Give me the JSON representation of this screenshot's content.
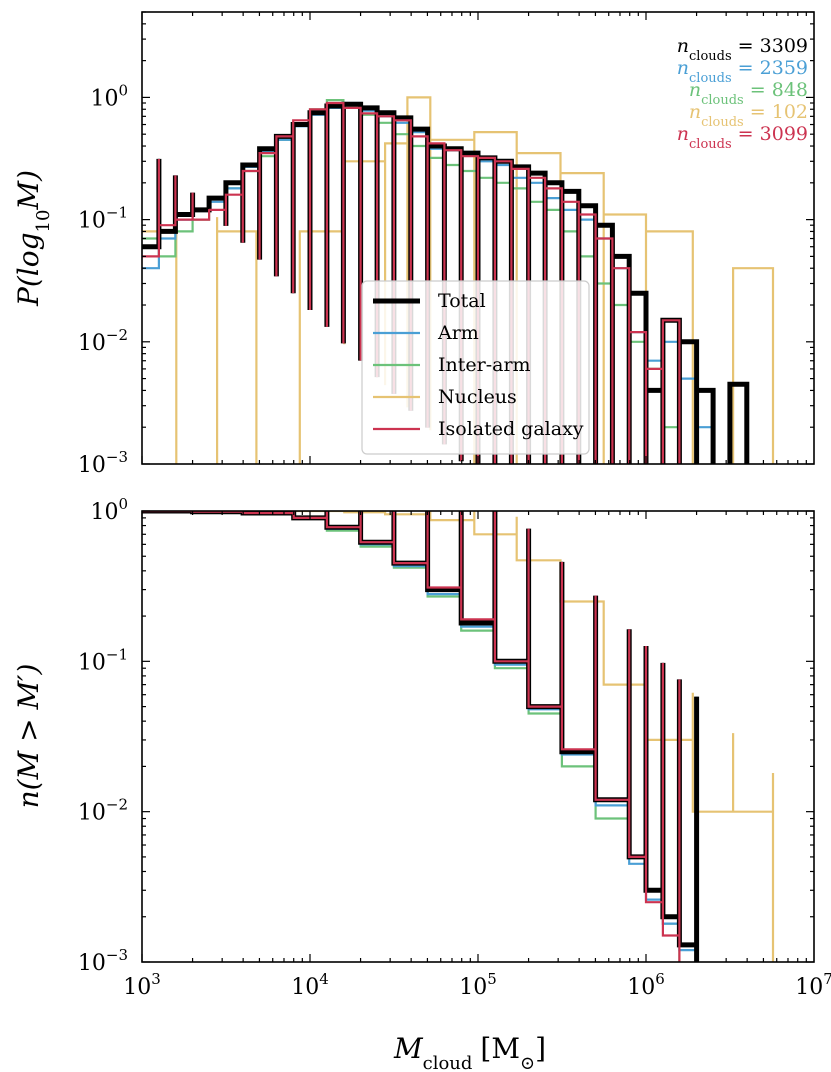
{
  "colors": {
    "Total": "#000000",
    "Arm": "#4a9fd5",
    "Inter-arm": "#6cc27a",
    "Nucleus": "#e6c373",
    "Isolated galaxy": "#cc3350"
  },
  "figure": {
    "xlabel_sym": "M",
    "xlabel_sub": "cloud",
    "xlabel_unit": "[M",
    "xlabel_unit_sub": "⊙",
    "xlabel_unit_close": "]",
    "top_ylabel": "P(log",
    "top_ylabel_sub": "10",
    "top_ylabel_end": "M)",
    "bottom_ylabel": "n(M > M′)"
  },
  "ann_prefix": "n",
  "ann_sub": "clouds",
  "ann_eq": " = ",
  "counts": [
    {
      "series": "Total",
      "value": "3309"
    },
    {
      "series": "Arm",
      "value": "2359"
    },
    {
      "series": "Inter-arm",
      "value": "848"
    },
    {
      "series": "Nucleus",
      "value": "102"
    },
    {
      "series": "Isolated galaxy",
      "value": "3099"
    }
  ],
  "legend": [
    "Total",
    "Arm",
    "Inter-arm",
    "Nucleus",
    "Isolated galaxy"
  ],
  "x_ticks": [
    {
      "base": "10",
      "exp": "3",
      "value": 3
    },
    {
      "base": "10",
      "exp": "4",
      "value": 4
    },
    {
      "base": "10",
      "exp": "5",
      "value": 5
    },
    {
      "base": "10",
      "exp": "6",
      "value": 6
    },
    {
      "base": "10",
      "exp": "7",
      "value": 7
    }
  ],
  "top_y_ticks": [
    {
      "base": "10",
      "exp": "0",
      "value": 0
    },
    {
      "base": "10",
      "exp": "−1",
      "value": -1
    },
    {
      "base": "10",
      "exp": "−2",
      "value": -2
    },
    {
      "base": "10",
      "exp": "−3",
      "value": -3
    }
  ],
  "bottom_y_ticks": [
    {
      "base": "10",
      "exp": "0",
      "value": 0
    },
    {
      "base": "10",
      "exp": "−1",
      "value": -1
    },
    {
      "base": "10",
      "exp": "−2",
      "value": -2
    },
    {
      "base": "10",
      "exp": "−3",
      "value": -3
    }
  ],
  "chart_data": [
    {
      "type": "line",
      "panel": "top",
      "x_scale": "log",
      "y_scale": "log",
      "xlim": [
        1000,
        10000000
      ],
      "ylim": [
        0.001,
        5
      ],
      "xlabel": "M_cloud [M_⊙]",
      "ylabel": "P(log10 M)",
      "legend_position": "center-left",
      "series": [
        {
          "name": "Total",
          "x": [
            1000,
            1260,
            1580,
            2000,
            2510,
            3160,
            3980,
            5010,
            6310,
            7940,
            10000,
            12600,
            15800,
            20000,
            25100,
            31600,
            39800,
            50100,
            63100,
            79400,
            100000,
            126000,
            158000,
            200000,
            251000,
            316000,
            398000,
            501000,
            631000,
            794000,
            1000000,
            1260000,
            1580000,
            2000000,
            2510000,
            3160000,
            3980000
          ],
          "y": [
            0.06,
            0.08,
            0.11,
            0.12,
            0.15,
            0.2,
            0.28,
            0.38,
            0.48,
            0.6,
            0.75,
            0.85,
            0.88,
            0.82,
            0.75,
            0.68,
            0.55,
            0.4,
            0.38,
            0.35,
            0.32,
            0.3,
            0.27,
            0.24,
            0.2,
            0.17,
            0.13,
            0.09,
            0.05,
            0.025,
            0.004,
            0.015,
            0.01,
            0.004,
            0.0,
            0.0045,
            0.0
          ]
        },
        {
          "name": "Arm",
          "x": [
            1000,
            1260,
            1580,
            2000,
            2510,
            3160,
            3980,
            5010,
            6310,
            7940,
            10000,
            12600,
            15800,
            20000,
            25100,
            31600,
            39800,
            50100,
            63100,
            79400,
            100000,
            126000,
            158000,
            200000,
            251000,
            316000,
            398000,
            501000,
            631000,
            794000,
            1000000,
            1260000,
            1580000,
            2000000,
            2510000
          ],
          "y": [
            0.04,
            0.07,
            0.1,
            0.12,
            0.14,
            0.18,
            0.27,
            0.36,
            0.45,
            0.58,
            0.72,
            0.82,
            0.9,
            0.78,
            0.7,
            0.62,
            0.52,
            0.38,
            0.37,
            0.34,
            0.3,
            0.28,
            0.22,
            0.2,
            0.15,
            0.12,
            0.1,
            0.07,
            0.04,
            0.012,
            0.007,
            0.01,
            0.005,
            0.002,
            0.0
          ]
        },
        {
          "name": "Inter-arm",
          "x": [
            1000,
            1260,
            1580,
            2000,
            2510,
            3160,
            3980,
            5010,
            6310,
            7940,
            10000,
            12600,
            15800,
            20000,
            25100,
            31600,
            39800,
            50100,
            63100,
            79400,
            100000,
            126000,
            158000,
            200000,
            251000,
            316000,
            398000,
            501000,
            631000,
            794000,
            1000000,
            1260000,
            1580000
          ],
          "y": [
            0.07,
            0.05,
            0.08,
            0.1,
            0.15,
            0.18,
            0.25,
            0.33,
            0.45,
            0.6,
            0.8,
            0.95,
            0.85,
            0.72,
            0.62,
            0.5,
            0.4,
            0.32,
            0.28,
            0.25,
            0.22,
            0.2,
            0.18,
            0.14,
            0.12,
            0.08,
            0.05,
            0.03,
            0.02,
            0.01,
            0.006,
            0.002,
            0.0
          ]
        },
        {
          "name": "Nucleus",
          "x": [
            1000,
            1600,
            2800,
            4800,
            8700,
            16000,
            28000,
            38000,
            52000,
            95000,
            170000,
            310000,
            560000,
            1000000,
            1900000,
            3300000,
            5700000
          ],
          "y": [
            0.08,
            0.0,
            0.08,
            0.0,
            0.08,
            0.3,
            0.42,
            1.0,
            0.45,
            0.52,
            0.35,
            0.24,
            0.11,
            0.08,
            0.0,
            0.04,
            0.0
          ]
        },
        {
          "name": "Isolated galaxy",
          "x": [
            1000,
            1260,
            1580,
            2000,
            2510,
            3160,
            3980,
            5010,
            6310,
            7940,
            10000,
            12600,
            15800,
            20000,
            25100,
            31600,
            39800,
            50100,
            63100,
            79400,
            100000,
            126000,
            158000,
            200000,
            251000,
            316000,
            398000,
            501000,
            631000,
            794000,
            1000000,
            1260000,
            1580000
          ],
          "y": [
            0.05,
            0.09,
            0.1,
            0.1,
            0.12,
            0.16,
            0.25,
            0.35,
            0.48,
            0.65,
            0.8,
            0.9,
            0.82,
            0.74,
            0.7,
            0.65,
            0.48,
            0.42,
            0.37,
            0.33,
            0.32,
            0.3,
            0.26,
            0.22,
            0.18,
            0.14,
            0.11,
            0.07,
            0.04,
            0.012,
            0.006,
            0.015,
            0.0
          ]
        }
      ]
    },
    {
      "type": "line",
      "panel": "bottom",
      "x_scale": "log",
      "y_scale": "log",
      "xlim": [
        1000,
        10000000
      ],
      "ylim": [
        0.001,
        1
      ],
      "xlabel": "M_cloud [M_⊙]",
      "ylabel": "n(M > M′)",
      "series": [
        {
          "name": "Total",
          "x": [
            1000,
            2000,
            4000,
            8000,
            12600,
            20000,
            31600,
            50100,
            79400,
            126000,
            200000,
            316000,
            501000,
            794000,
            1000000,
            1260000,
            1580000,
            2000000
          ],
          "y": [
            1.0,
            0.99,
            0.97,
            0.9,
            0.78,
            0.62,
            0.45,
            0.3,
            0.18,
            0.1,
            0.05,
            0.025,
            0.012,
            0.005,
            0.003,
            0.002,
            0.0013,
            0.001
          ]
        },
        {
          "name": "Arm",
          "x": [
            1000,
            2000,
            4000,
            8000,
            12600,
            20000,
            31600,
            50100,
            79400,
            126000,
            200000,
            316000,
            501000,
            794000,
            1000000,
            1260000,
            1580000,
            2000000
          ],
          "y": [
            1.0,
            0.99,
            0.97,
            0.9,
            0.76,
            0.6,
            0.43,
            0.28,
            0.17,
            0.095,
            0.048,
            0.024,
            0.011,
            0.0045,
            0.0026,
            0.0018,
            0.0012,
            0.001
          ]
        },
        {
          "name": "Inter-arm",
          "x": [
            1000,
            2000,
            4000,
            8000,
            12600,
            20000,
            31600,
            50100,
            79400,
            126000,
            200000,
            316000,
            501000,
            794000,
            1000000,
            1260000,
            1580000
          ],
          "y": [
            1.0,
            0.99,
            0.97,
            0.89,
            0.74,
            0.58,
            0.42,
            0.27,
            0.16,
            0.09,
            0.045,
            0.02,
            0.009,
            0.005,
            0.003,
            0.0018,
            0.001
          ]
        },
        {
          "name": "Nucleus",
          "x": [
            1000,
            8000,
            16000,
            28000,
            52000,
            95000,
            170000,
            310000,
            560000,
            1000000,
            1900000,
            3300000,
            5700000
          ],
          "y": [
            1.0,
            1.0,
            0.98,
            0.95,
            0.87,
            0.7,
            0.47,
            0.25,
            0.07,
            0.03,
            0.01,
            0.01,
            0.001
          ]
        },
        {
          "name": "Isolated galaxy",
          "x": [
            1000,
            2000,
            4000,
            8000,
            12600,
            20000,
            31600,
            50100,
            79400,
            126000,
            200000,
            316000,
            501000,
            794000,
            1000000,
            1260000,
            1580000
          ],
          "y": [
            1.0,
            0.99,
            0.97,
            0.9,
            0.78,
            0.62,
            0.45,
            0.31,
            0.19,
            0.1,
            0.05,
            0.026,
            0.012,
            0.005,
            0.0025,
            0.0015,
            0.001
          ]
        }
      ]
    }
  ]
}
